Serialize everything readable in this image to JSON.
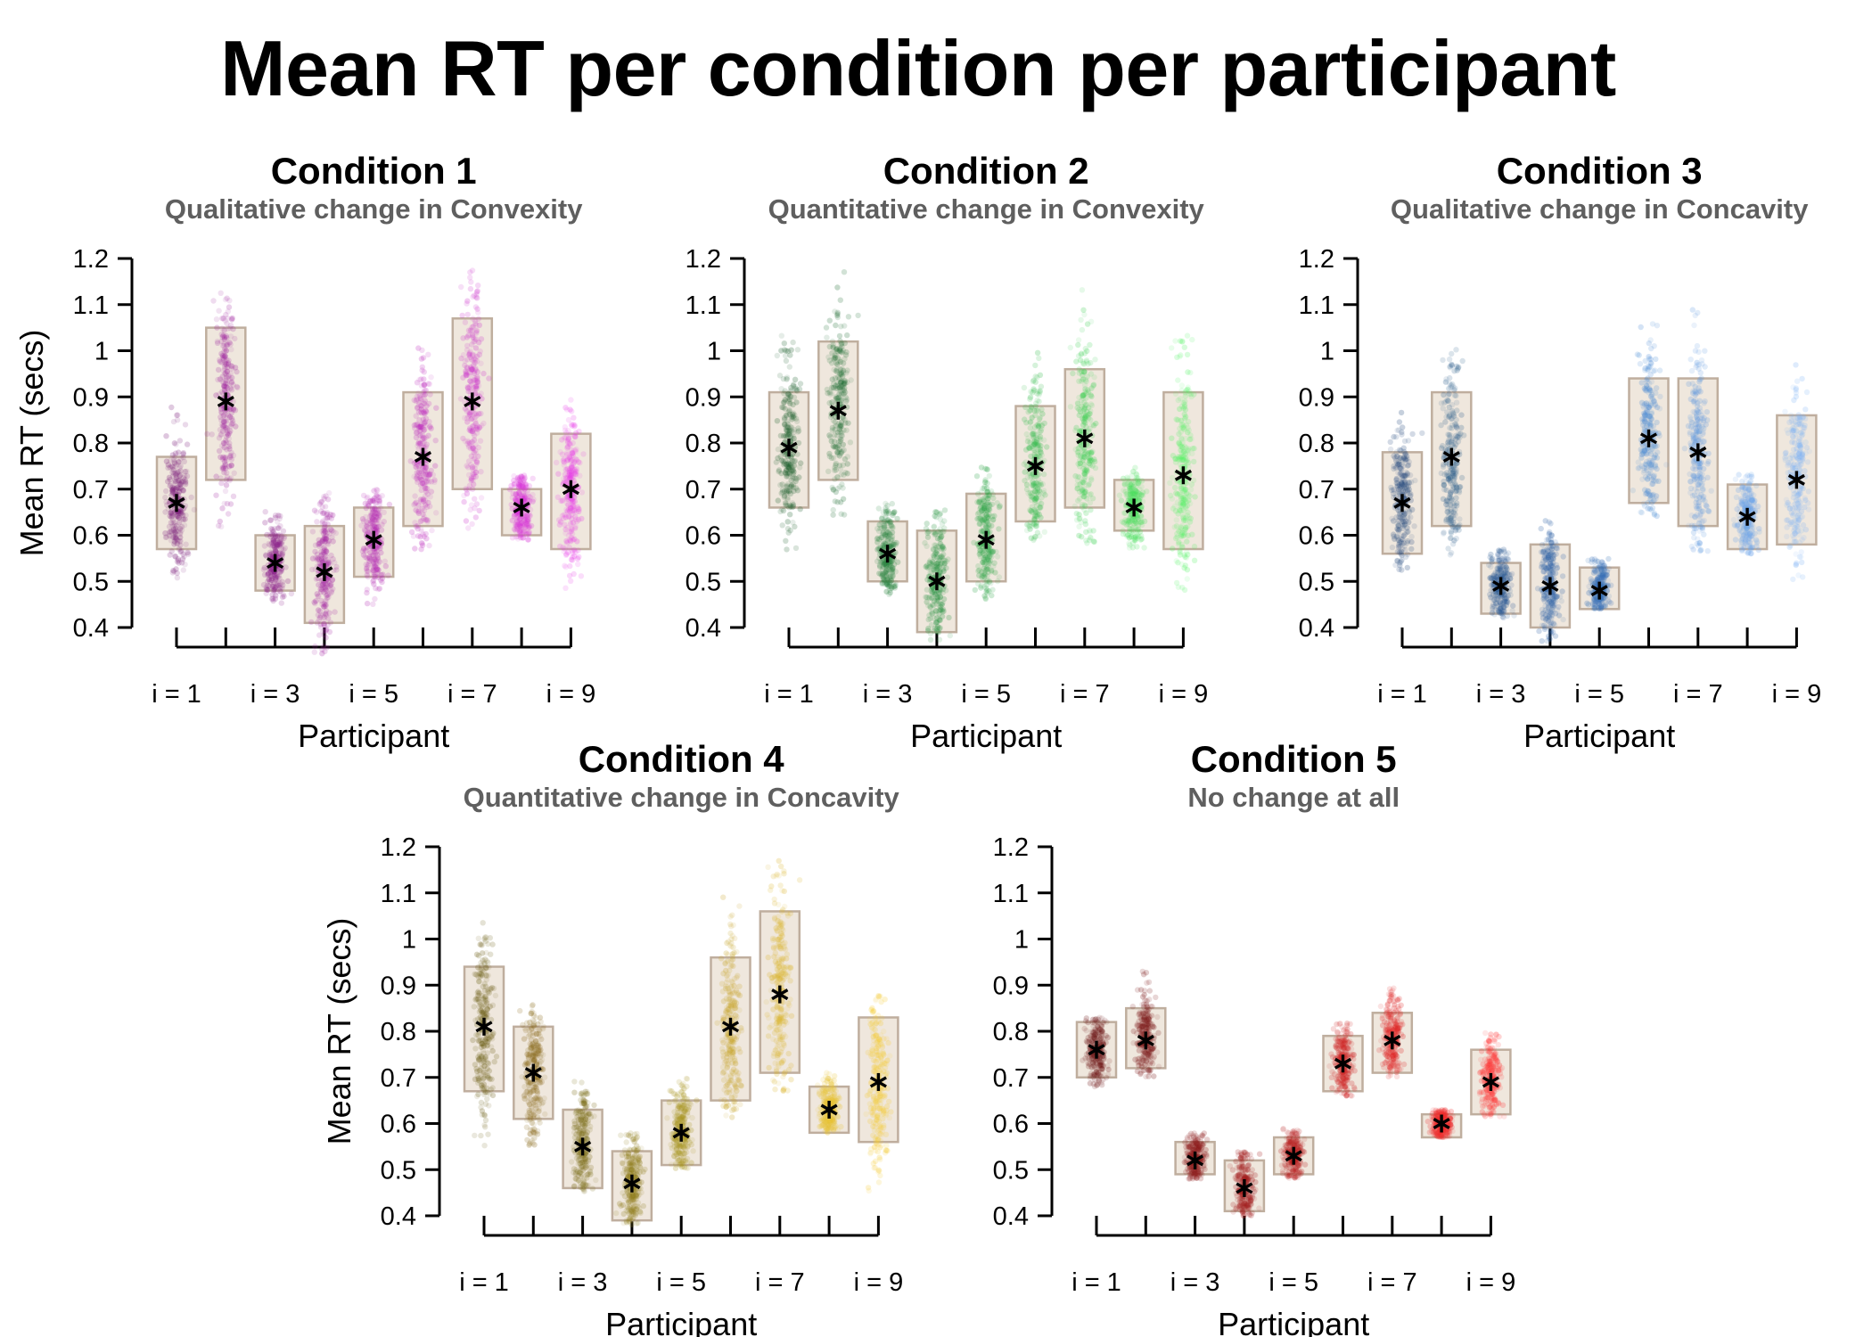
{
  "figure": {
    "title": "Mean RT per condition per participant"
  },
  "chart_data": [
    {
      "type": "scatter",
      "title": "Condition 1",
      "subtitle": "Qualitative change in Convexity",
      "xlabel": "Participant",
      "ylabel": "Mean RT (secs)",
      "ylim": [
        0.4,
        1.2
      ],
      "y_ticks": [
        "0.4",
        "0.5",
        "0.6",
        "0.7",
        "0.8",
        "0.9",
        "1",
        "1.1",
        "1.2"
      ],
      "x_tick_labels": [
        "i = 1",
        "i = 3",
        "i = 5",
        "i = 7",
        "i = 9"
      ],
      "participants": [
        1,
        2,
        3,
        4,
        5,
        6,
        7,
        8,
        9
      ],
      "colors": [
        "#7a1b7a",
        "#9e239e",
        "#8a1e8a",
        "#a324a3",
        "#b52ab5",
        "#bf2ebf",
        "#cc31cc",
        "#d936d9",
        "#e83ce8"
      ],
      "means": [
        0.67,
        0.89,
        0.54,
        0.52,
        0.59,
        0.77,
        0.89,
        0.66,
        0.7
      ],
      "ci_low": [
        0.57,
        0.72,
        0.48,
        0.41,
        0.51,
        0.62,
        0.7,
        0.6,
        0.57
      ],
      "ci_high": [
        0.77,
        1.05,
        0.6,
        0.62,
        0.66,
        0.91,
        1.07,
        0.7,
        0.82
      ],
      "spread_low": [
        0.49,
        0.58,
        0.44,
        0.34,
        0.44,
        0.54,
        0.6,
        0.59,
        0.48
      ],
      "spread_high": [
        0.88,
        1.18,
        0.67,
        0.71,
        0.7,
        1.01,
        1.2,
        0.73,
        0.9
      ]
    },
    {
      "type": "scatter",
      "title": "Condition 2",
      "subtitle": "Quantitative change in Convexity",
      "xlabel": "Participant",
      "ylabel": "",
      "ylim": [
        0.4,
        1.2
      ],
      "y_ticks": [
        "0.4",
        "0.5",
        "0.6",
        "0.7",
        "0.8",
        "0.9",
        "1",
        "1.1",
        "1.2"
      ],
      "x_tick_labels": [
        "i = 1",
        "i = 3",
        "i = 5",
        "i = 7",
        "i = 9"
      ],
      "participants": [
        1,
        2,
        3,
        4,
        5,
        6,
        7,
        8,
        9
      ],
      "colors": [
        "#1b5e2b",
        "#1f6e33",
        "#22803a",
        "#25923f",
        "#2aa545",
        "#34bc4c",
        "#3ed154",
        "#47df5a",
        "#52f262"
      ],
      "means": [
        0.79,
        0.87,
        0.56,
        0.5,
        0.59,
        0.75,
        0.81,
        0.66,
        0.73
      ],
      "ci_low": [
        0.66,
        0.72,
        0.5,
        0.39,
        0.5,
        0.63,
        0.66,
        0.61,
        0.57
      ],
      "ci_high": [
        0.91,
        1.02,
        0.63,
        0.61,
        0.69,
        0.88,
        0.96,
        0.72,
        0.91
      ],
      "spread_low": [
        0.56,
        0.64,
        0.47,
        0.37,
        0.46,
        0.57,
        0.58,
        0.57,
        0.46
      ],
      "spread_high": [
        1.04,
        1.18,
        0.67,
        0.66,
        0.76,
        1.01,
        1.14,
        0.75,
        1.06
      ]
    },
    {
      "type": "scatter",
      "title": "Condition 3",
      "subtitle": "Qualitative change in Concavity",
      "xlabel": "Participant",
      "ylabel": "",
      "ylim": [
        0.4,
        1.2
      ],
      "y_ticks": [
        "0.4",
        "0.5",
        "0.6",
        "0.7",
        "0.8",
        "0.9",
        "1",
        "1.1",
        "1.2"
      ],
      "x_tick_labels": [
        "i = 1",
        "i = 3",
        "i = 5",
        "i = 7",
        "i = 9"
      ],
      "participants": [
        1,
        2,
        3,
        4,
        5,
        6,
        7,
        8,
        9
      ],
      "colors": [
        "#23487d",
        "#2a5d8a",
        "#2c5a95",
        "#3165a8",
        "#3670b8",
        "#4a8bd4",
        "#5a96df",
        "#6ca4ea",
        "#7fb3f5"
      ],
      "means": [
        0.67,
        0.77,
        0.49,
        0.49,
        0.48,
        0.81,
        0.78,
        0.64,
        0.72
      ],
      "ci_low": [
        0.56,
        0.62,
        0.43,
        0.4,
        0.44,
        0.67,
        0.62,
        0.57,
        0.58
      ],
      "ci_high": [
        0.78,
        0.91,
        0.54,
        0.58,
        0.53,
        0.94,
        0.94,
        0.71,
        0.86
      ],
      "spread_low": [
        0.52,
        0.55,
        0.42,
        0.37,
        0.44,
        0.64,
        0.56,
        0.56,
        0.48
      ],
      "spread_high": [
        0.88,
        1.03,
        0.57,
        0.64,
        0.55,
        1.09,
        1.09,
        0.74,
        1.0
      ]
    },
    {
      "type": "scatter",
      "title": "Condition 4",
      "subtitle": "Quantitative change in Concavity",
      "xlabel": "Participant",
      "ylabel": "Mean RT (secs)",
      "ylim": [
        0.4,
        1.2
      ],
      "y_ticks": [
        "0.4",
        "0.5",
        "0.6",
        "0.7",
        "0.8",
        "0.9",
        "1",
        "1.1",
        "1.2"
      ],
      "x_tick_labels": [
        "i = 1",
        "i = 3",
        "i = 5",
        "i = 7",
        "i = 9"
      ],
      "participants": [
        1,
        2,
        3,
        4,
        5,
        6,
        7,
        8,
        9
      ],
      "colors": [
        "#6b5d14",
        "#8a6a1a",
        "#7c6e18",
        "#907d1a",
        "#a8951f",
        "#c7a428",
        "#dbb52c",
        "#e8c232",
        "#f5cc36"
      ],
      "means": [
        0.81,
        0.71,
        0.55,
        0.47,
        0.58,
        0.81,
        0.88,
        0.63,
        0.69
      ],
      "ci_low": [
        0.67,
        0.61,
        0.46,
        0.39,
        0.51,
        0.65,
        0.71,
        0.58,
        0.56
      ],
      "ci_high": [
        0.94,
        0.81,
        0.63,
        0.54,
        0.65,
        0.96,
        1.06,
        0.68,
        0.83
      ],
      "spread_low": [
        0.5,
        0.55,
        0.45,
        0.38,
        0.5,
        0.61,
        0.67,
        0.58,
        0.44
      ],
      "spread_high": [
        1.04,
        0.87,
        0.7,
        0.58,
        0.7,
        1.1,
        1.17,
        0.71,
        0.88
      ]
    },
    {
      "type": "scatter",
      "title": "Condition 5",
      "subtitle": "No change at all",
      "xlabel": "Participant",
      "ylabel": "",
      "ylim": [
        0.4,
        1.2
      ],
      "y_ticks": [
        "0.4",
        "0.5",
        "0.6",
        "0.7",
        "0.8",
        "0.9",
        "1",
        "1.1",
        "1.2"
      ],
      "x_tick_labels": [
        "i = 1",
        "i = 3",
        "i = 5",
        "i = 7",
        "i = 9"
      ],
      "participants": [
        1,
        2,
        3,
        4,
        5,
        6,
        7,
        8,
        9
      ],
      "colors": [
        "#6e1616",
        "#7d1a1a",
        "#8e1c1c",
        "#a31f1f",
        "#b92222",
        "#cf2424",
        "#e02828",
        "#ee2c2c",
        "#ff3636"
      ],
      "means": [
        0.76,
        0.78,
        0.52,
        0.46,
        0.53,
        0.73,
        0.78,
        0.6,
        0.69
      ],
      "ci_low": [
        0.7,
        0.72,
        0.49,
        0.41,
        0.49,
        0.67,
        0.71,
        0.57,
        0.62
      ],
      "ci_high": [
        0.82,
        0.85,
        0.56,
        0.52,
        0.57,
        0.79,
        0.84,
        0.62,
        0.76
      ],
      "spread_low": [
        0.68,
        0.7,
        0.48,
        0.4,
        0.48,
        0.66,
        0.7,
        0.57,
        0.61
      ],
      "spread_high": [
        0.83,
        0.94,
        0.58,
        0.54,
        0.59,
        0.82,
        0.9,
        0.63,
        0.8
      ]
    }
  ]
}
